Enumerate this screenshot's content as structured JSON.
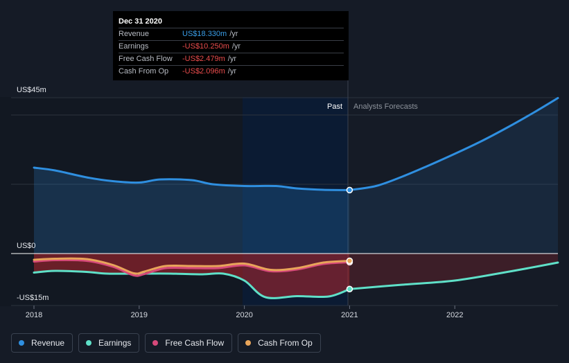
{
  "tooltip": {
    "date": "Dec 31 2020",
    "rows": [
      {
        "name": "Revenue",
        "value": "US$18.330m",
        "unit": "/yr",
        "sign": "pos"
      },
      {
        "name": "Earnings",
        "value": "-US$10.250m",
        "unit": "/yr",
        "sign": "neg"
      },
      {
        "name": "Free Cash Flow",
        "value": "-US$2.479m",
        "unit": "/yr",
        "sign": "neg"
      },
      {
        "name": "Cash From Op",
        "value": "-US$2.096m",
        "unit": "/yr",
        "sign": "neg"
      }
    ]
  },
  "legend": [
    {
      "name": "Revenue",
      "color": "#2f8fe0"
    },
    {
      "name": "Earnings",
      "color": "#5fe0c8"
    },
    {
      "name": "Free Cash Flow",
      "color": "#d6497a"
    },
    {
      "name": "Cash From Op",
      "color": "#e8a55a"
    }
  ],
  "chart_data": {
    "type": "area",
    "y_tick_labels": [
      "US$45m",
      "US$0",
      "-US$15m"
    ],
    "ylim": [
      -15,
      45
    ],
    "xlim": [
      2018,
      2022.98
    ],
    "x_tick_labels": [
      "2018",
      "2019",
      "2020",
      "2021",
      "2022"
    ],
    "x_ticks": [
      2018,
      2019,
      2020,
      2021,
      2022
    ],
    "past_label": "Past",
    "forecast_label": "Analysts Forecasts",
    "past_end": 2021,
    "highlight_start": 2020,
    "grid": true,
    "legend_position": "bottom-left",
    "series": [
      {
        "name": "Revenue",
        "color": "#2f8fe0",
        "x": [
          2018,
          2018.2,
          2018.5,
          2018.75,
          2019,
          2019.2,
          2019.5,
          2019.7,
          2020,
          2020.3,
          2020.5,
          2020.75,
          2021
        ],
        "y": [
          24.8,
          24.0,
          22.0,
          20.9,
          20.5,
          21.4,
          21.2,
          20.0,
          19.5,
          19.5,
          18.8,
          18.4,
          18.33
        ]
      },
      {
        "name": "Revenue forecast",
        "color": "#2f8fe0",
        "x": [
          2021,
          2021.25,
          2021.5,
          2021.75,
          2022,
          2022.25,
          2022.5,
          2022.75,
          2022.98
        ],
        "y": [
          18.33,
          19.5,
          22.2,
          25.4,
          28.8,
          32.4,
          36.4,
          40.7,
          44.9
        ]
      },
      {
        "name": "Earnings",
        "color": "#5fe0c8",
        "x": [
          2018,
          2018.2,
          2018.5,
          2018.7,
          2019,
          2019.3,
          2019.6,
          2019.8,
          2020,
          2020.2,
          2020.5,
          2020.8,
          2021
        ],
        "y": [
          -5.5,
          -5.0,
          -5.3,
          -5.8,
          -5.8,
          -5.8,
          -6.0,
          -5.8,
          -7.8,
          -12.6,
          -12.3,
          -12.4,
          -10.25
        ]
      },
      {
        "name": "Earnings forecast",
        "color": "#5fe0c8",
        "x": [
          2021,
          2021.5,
          2022,
          2022.5,
          2022.98
        ],
        "y": [
          -10.25,
          -9.0,
          -7.8,
          -5.3,
          -2.6
        ]
      },
      {
        "name": "Free Cash Flow",
        "color": "#d6497a",
        "x": [
          2018,
          2018.2,
          2018.5,
          2018.75,
          2018.95,
          2019.05,
          2019.25,
          2019.5,
          2019.75,
          2020,
          2020.25,
          2020.5,
          2020.75,
          2021
        ],
        "y": [
          -2.3,
          -1.9,
          -2.1,
          -3.8,
          -6.3,
          -5.9,
          -4.2,
          -4.2,
          -4.2,
          -3.4,
          -5.1,
          -4.6,
          -3.0,
          -2.479
        ]
      },
      {
        "name": "Cash From Op",
        "color": "#e8a55a",
        "x": [
          2018,
          2018.2,
          2018.5,
          2018.75,
          2018.95,
          2019.05,
          2019.25,
          2019.5,
          2019.75,
          2020,
          2020.25,
          2020.5,
          2020.75,
          2021
        ],
        "y": [
          -1.8,
          -1.5,
          -1.6,
          -3.3,
          -5.7,
          -5.2,
          -3.6,
          -3.6,
          -3.6,
          -2.9,
          -4.7,
          -4.2,
          -2.6,
          -2.096
        ]
      }
    ]
  }
}
